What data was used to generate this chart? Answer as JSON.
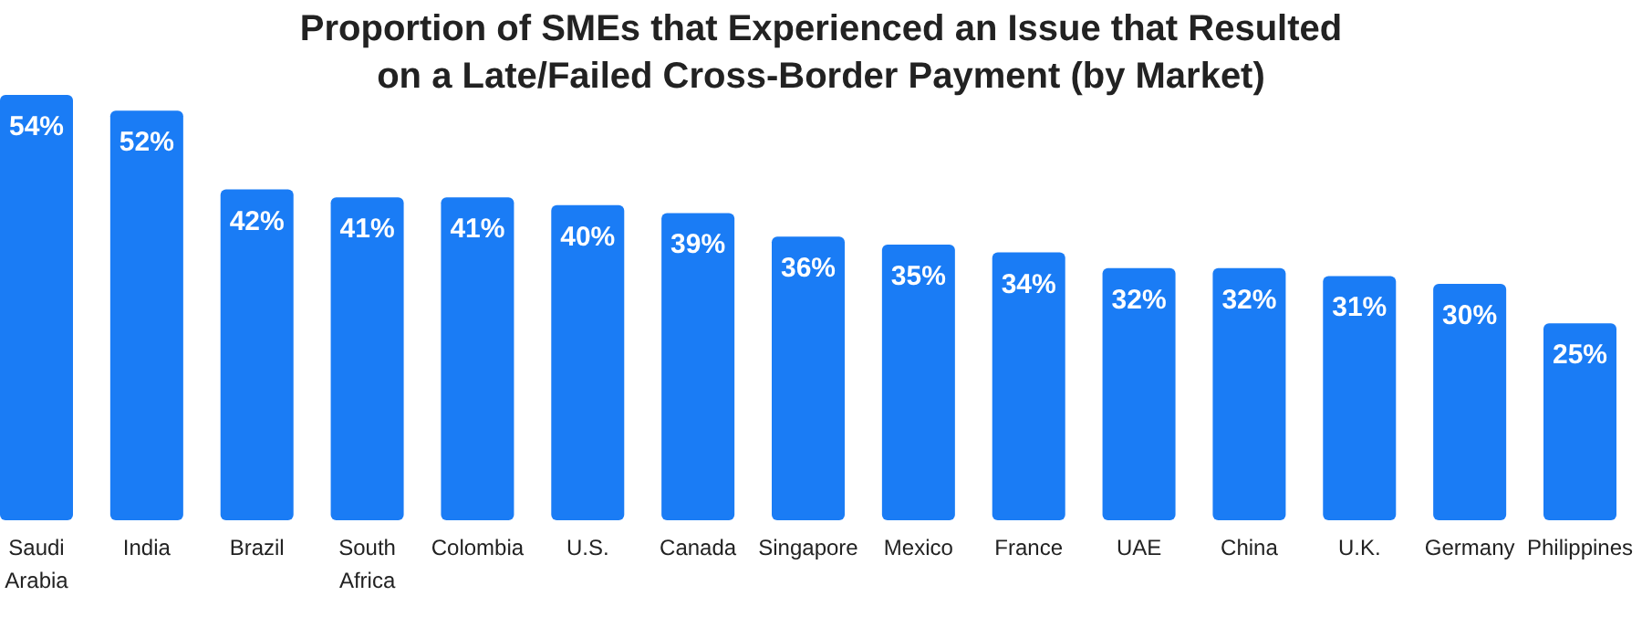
{
  "chart_data": {
    "type": "bar",
    "title": "Proportion of SMEs that Experienced an Issue that Resulted on a Late/Failed Cross-Border Payment (by Market)",
    "categories": [
      "Saudi Arabia",
      "India",
      "Brazil",
      "South Africa",
      "Colombia",
      "U.S.",
      "Canada",
      "Singapore",
      "Mexico",
      "France",
      "UAE",
      "China",
      "U.K.",
      "Germany",
      "Philippines"
    ],
    "values": [
      54,
      52,
      42,
      41,
      41,
      40,
      39,
      36,
      35,
      34,
      32,
      32,
      31,
      30,
      25
    ],
    "value_labels": [
      "54%",
      "52%",
      "42%",
      "41%",
      "41%",
      "40%",
      "39%",
      "36%",
      "35%",
      "34%",
      "32%",
      "32%",
      "31%",
      "30%",
      "25%"
    ],
    "color": "#1a7cf5"
  }
}
